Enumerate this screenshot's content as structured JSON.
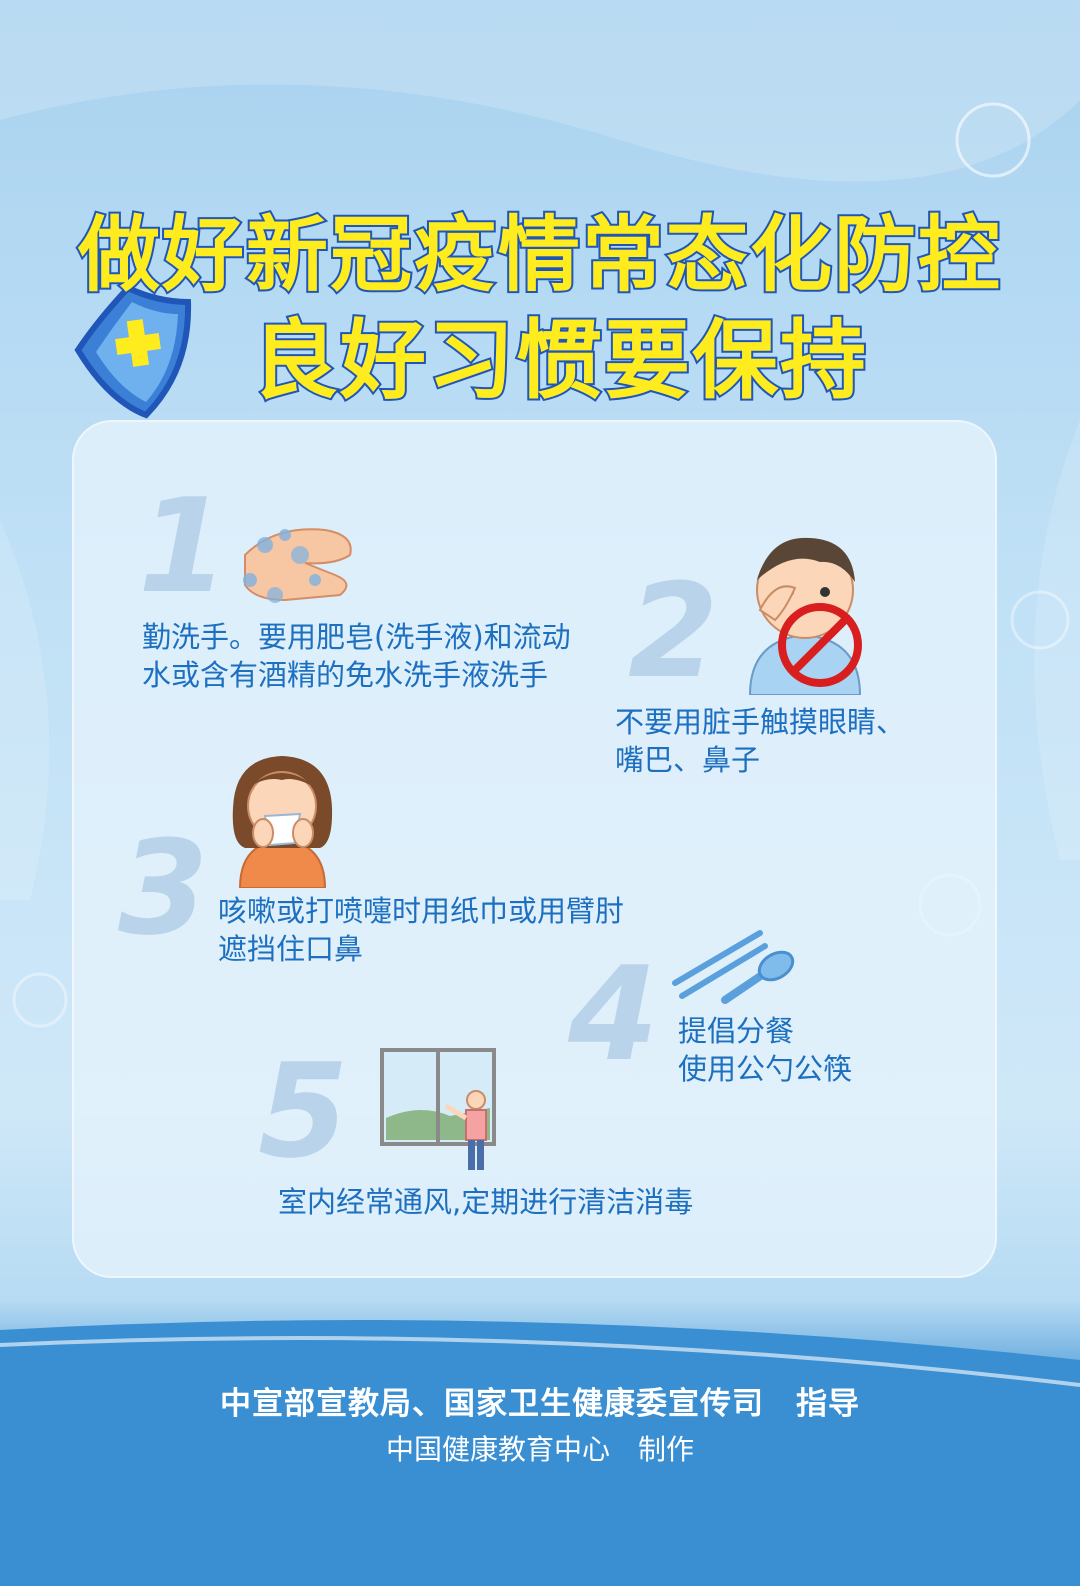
{
  "title": {
    "line1": "做好新冠疫情常态化防控",
    "line2": "良好习惯要保持"
  },
  "steps": [
    {
      "number": "1",
      "line1": "勤洗手。要用肥皂(洗手液)和流动",
      "line2": "水或含有酒精的免水洗手液洗手"
    },
    {
      "number": "2",
      "line1": "不要用脏手触摸眼睛、",
      "line2": "嘴巴、鼻子"
    },
    {
      "number": "3",
      "line1": "咳嗽或打喷嚏时用纸巾或用臂肘",
      "line2": "遮挡住口鼻"
    },
    {
      "number": "4",
      "line1": "提倡分餐",
      "line2": "使用公勺公筷"
    },
    {
      "number": "5",
      "line1": "室内经常通风,定期进行清洁消毒",
      "line2": ""
    }
  ],
  "footer": {
    "guide": "中宣部宣教局、国家卫生健康委宣传司　指导",
    "made": "中国健康教育中心　制作"
  },
  "colors": {
    "title_fill": "#ffec1f",
    "title_stroke": "#1f56b8",
    "step_text": "#1d6fc0",
    "step_number": "#b9d3ea",
    "footer_band": "#2f86cc"
  },
  "icons": [
    "shield-cross-icon",
    "hand-washing-icon",
    "no-touch-face-icon",
    "sneeze-tissue-icon",
    "chopsticks-spoon-icon",
    "window-ventilation-icon"
  ]
}
